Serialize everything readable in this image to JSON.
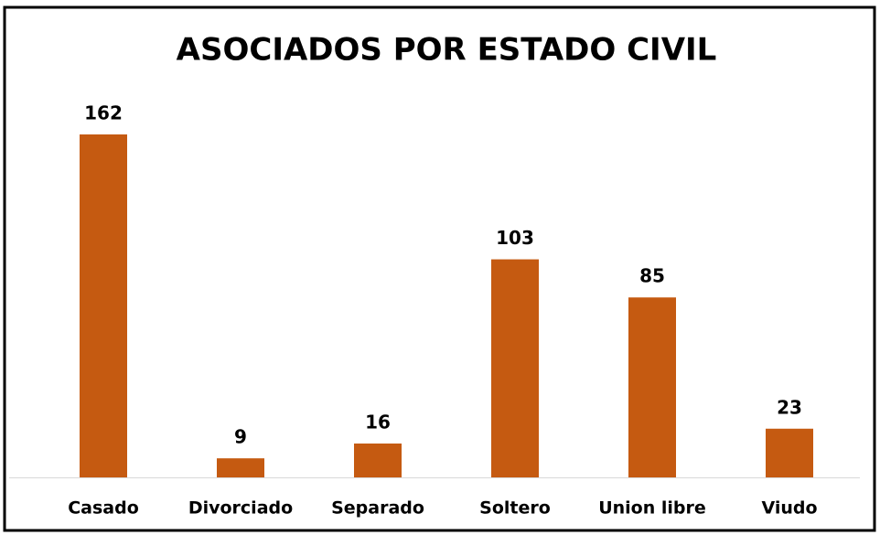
{
  "chart_data": {
    "type": "bar",
    "title": "ASOCIADOS POR ESTADO CIVIL",
    "categories": [
      "Casado",
      "Divorciado",
      "Separado",
      "Soltero",
      "Union libre",
      "Viudo"
    ],
    "values": [
      162,
      9,
      16,
      103,
      85,
      23
    ],
    "color": "#c55a11"
  }
}
